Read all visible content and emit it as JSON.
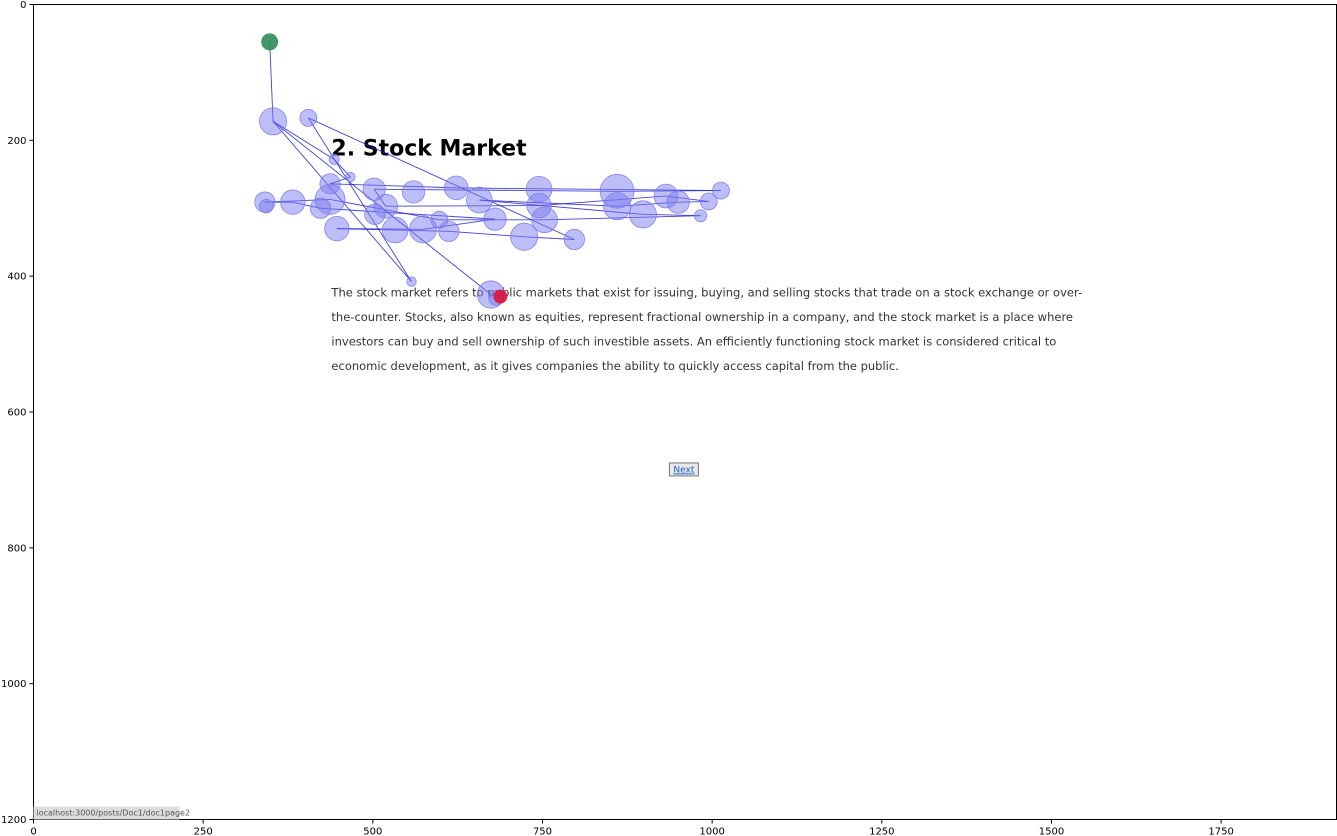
{
  "chart_data": {
    "type": "scatter",
    "title": "",
    "xlabel": "",
    "ylabel": "",
    "xlim": [
      0,
      1920
    ],
    "ylim": [
      1200,
      0
    ],
    "xticks": [
      0,
      250,
      500,
      750,
      1000,
      1250,
      1500,
      1750
    ],
    "yticks": [
      0,
      200,
      400,
      600,
      800,
      1000,
      1200
    ],
    "grid": false,
    "legend": "none",
    "start_color": "#2e8b57",
    "end_color": "#dc143c",
    "fixation_color": "#7b7bf0",
    "path_color": "#2020d0",
    "start_point": {
      "x": 348,
      "y": 55
    },
    "end_point": {
      "x": 688,
      "y": 430
    },
    "fixations": [
      {
        "x": 353,
        "y": 172,
        "d": 40
      },
      {
        "x": 405,
        "y": 167,
        "d": 25
      },
      {
        "x": 443,
        "y": 228,
        "d": 15
      },
      {
        "x": 467,
        "y": 254,
        "d": 14
      },
      {
        "x": 437,
        "y": 264,
        "d": 30
      },
      {
        "x": 502,
        "y": 272,
        "d": 33
      },
      {
        "x": 560,
        "y": 276,
        "d": 33
      },
      {
        "x": 623,
        "y": 270,
        "d": 35
      },
      {
        "x": 745,
        "y": 272,
        "d": 38
      },
      {
        "x": 860,
        "y": 275,
        "d": 50
      },
      {
        "x": 932,
        "y": 282,
        "d": 35
      },
      {
        "x": 1013,
        "y": 274,
        "d": 25
      },
      {
        "x": 995,
        "y": 290,
        "d": 25
      },
      {
        "x": 950,
        "y": 291,
        "d": 33
      },
      {
        "x": 860,
        "y": 297,
        "d": 40
      },
      {
        "x": 898,
        "y": 309,
        "d": 40
      },
      {
        "x": 983,
        "y": 311,
        "d": 18
      },
      {
        "x": 745,
        "y": 296,
        "d": 36
      },
      {
        "x": 657,
        "y": 288,
        "d": 38
      },
      {
        "x": 680,
        "y": 316,
        "d": 33
      },
      {
        "x": 753,
        "y": 317,
        "d": 38
      },
      {
        "x": 723,
        "y": 342,
        "d": 40
      },
      {
        "x": 797,
        "y": 346,
        "d": 30
      },
      {
        "x": 612,
        "y": 334,
        "d": 30
      },
      {
        "x": 598,
        "y": 317,
        "d": 25
      },
      {
        "x": 574,
        "y": 331,
        "d": 40
      },
      {
        "x": 533,
        "y": 332,
        "d": 38
      },
      {
        "x": 519,
        "y": 297,
        "d": 35
      },
      {
        "x": 503,
        "y": 309,
        "d": 30
      },
      {
        "x": 437,
        "y": 287,
        "d": 44
      },
      {
        "x": 423,
        "y": 300,
        "d": 30
      },
      {
        "x": 447,
        "y": 330,
        "d": 36
      },
      {
        "x": 382,
        "y": 291,
        "d": 36
      },
      {
        "x": 341,
        "y": 291,
        "d": 30
      },
      {
        "x": 343,
        "y": 297,
        "d": 20
      },
      {
        "x": 557,
        "y": 408,
        "d": 14
      },
      {
        "x": 674,
        "y": 427,
        "d": 40
      },
      {
        "x": 682,
        "y": 432,
        "d": 22
      }
    ],
    "path": [
      [
        348,
        55
      ],
      [
        353,
        172
      ],
      [
        443,
        228
      ],
      [
        467,
        254
      ],
      [
        437,
        264
      ],
      [
        623,
        270
      ],
      [
        1013,
        274
      ],
      [
        860,
        275
      ],
      [
        502,
        272
      ],
      [
        519,
        297
      ],
      [
        745,
        296
      ],
      [
        932,
        282
      ],
      [
        995,
        290
      ],
      [
        950,
        291
      ],
      [
        860,
        297
      ],
      [
        657,
        288
      ],
      [
        898,
        309
      ],
      [
        983,
        311
      ],
      [
        753,
        317
      ],
      [
        598,
        317
      ],
      [
        437,
        287
      ],
      [
        341,
        291
      ],
      [
        382,
        291
      ],
      [
        423,
        300
      ],
      [
        680,
        316
      ],
      [
        574,
        331
      ],
      [
        447,
        330
      ],
      [
        612,
        334
      ],
      [
        723,
        342
      ],
      [
        797,
        346
      ],
      [
        405,
        167
      ],
      [
        557,
        408
      ],
      [
        353,
        172
      ],
      [
        674,
        427
      ],
      [
        688,
        430
      ]
    ]
  },
  "page": {
    "heading": "2. Stock Market",
    "paragraph_lines": [
      "The stock market refers to public markets that exist for issuing, buying, and selling stocks that trade on a stock exchange or over-",
      "the-counter. Stocks, also known as equities, represent fractional ownership in a company, and the stock market is a place where",
      "investors can buy and sell ownership of such investible assets. An efficiently functioning stock market is considered critical to",
      "economic development, as it gives companies the ability to quickly access capital from the public."
    ],
    "next_label": "Next",
    "status_url": "localhost:3000/posts/Doc1/doc1page2"
  }
}
